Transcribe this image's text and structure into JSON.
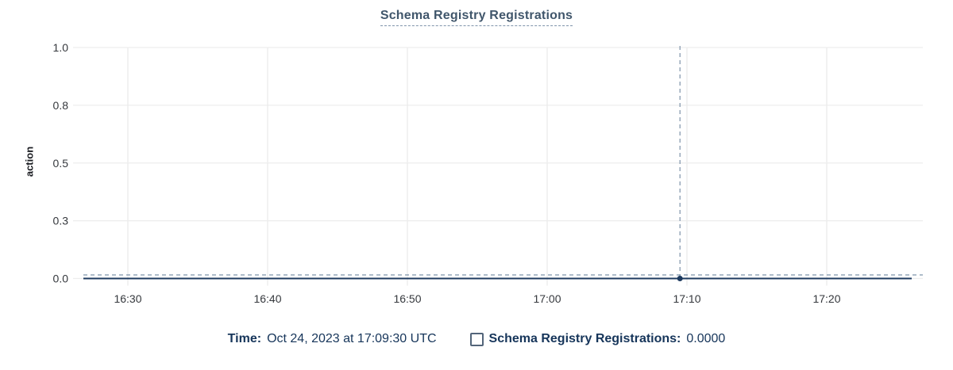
{
  "chart_data": {
    "type": "line",
    "title": "Schema Registry Registrations",
    "xlabel": "",
    "ylabel": "action",
    "ylim": [
      0,
      1
    ],
    "grid": true,
    "legend_position": "bottom",
    "y_ticks": [
      {
        "label": "1.0",
        "value": 1.0
      },
      {
        "label": "0.8",
        "value": 0.75
      },
      {
        "label": "0.5",
        "value": 0.5
      },
      {
        "label": "0.3",
        "value": 0.25
      },
      {
        "label": "0.0",
        "value": 0.0
      }
    ],
    "x_ticks": [
      "16:30",
      "16:40",
      "16:50",
      "17:00",
      "17:10",
      "17:20"
    ],
    "x_tick_interval_minutes": 10,
    "series": [
      {
        "name": "Schema Registry Registrations",
        "value": 0.0,
        "shape": "constant-flat-line-at-zero-across-full-time-range"
      }
    ],
    "crosshair": {
      "time": "17:09:30",
      "value": 0.0
    }
  },
  "legend": {
    "time_label": "Time:",
    "time_value": "Oct 24, 2023 at 17:09:30 UTC",
    "series_label": "Schema Registry Registrations:",
    "series_value": "0.0000"
  },
  "colors": {
    "series": "#1d3a5f",
    "crosshair": "#7e93aa",
    "grid": "#ededed",
    "tick_text": "#35383d",
    "title_text": "#40566b",
    "legend_text": "#16355a",
    "checkbox_border": "#53657a"
  }
}
